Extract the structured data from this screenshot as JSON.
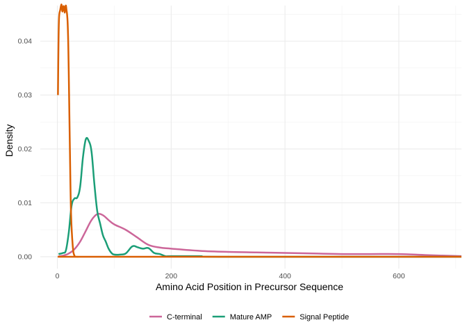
{
  "chart_data": {
    "type": "line",
    "title": "",
    "xlabel": "Amino Acid Position in Precursor Sequence",
    "ylabel": "Density",
    "xlim": [
      -30,
      710
    ],
    "ylim": [
      -0.0022,
      0.0466
    ],
    "x_ticks": [
      0,
      200,
      400,
      600
    ],
    "x_tick_labels": [
      "0",
      "200",
      "400",
      "600"
    ],
    "y_ticks": [
      0,
      0.01,
      0.02,
      0.03,
      0.04
    ],
    "y_tick_labels": [
      "0.00",
      "0.01",
      "0.02",
      "0.03",
      "0.04"
    ],
    "grid": true,
    "legend_position": "bottom",
    "series": [
      {
        "name": "C-terminal",
        "color": "#cc6699",
        "x": [
          2,
          10,
          20,
          30,
          40,
          50,
          60,
          70,
          80,
          90,
          100,
          120,
          140,
          160,
          180,
          200,
          250,
          300,
          350,
          400,
          450,
          500,
          550,
          600,
          650,
          710
        ],
        "y": [
          0.0001,
          0.0002,
          0.0006,
          0.0014,
          0.0028,
          0.0048,
          0.0068,
          0.0079,
          0.0077,
          0.0068,
          0.006,
          0.005,
          0.0036,
          0.0022,
          0.0017,
          0.0015,
          0.0011,
          0.0009,
          0.0008,
          0.0007,
          0.0006,
          0.0005,
          0.0005,
          0.0005,
          0.0003,
          0.0001
        ]
      },
      {
        "name": "Mature AMP",
        "color": "#1b9e77",
        "x": [
          2,
          10,
          15,
          20,
          25,
          30,
          35,
          40,
          45,
          50,
          55,
          60,
          65,
          70,
          75,
          80,
          85,
          90,
          95,
          100,
          110,
          120,
          130,
          135,
          140,
          150,
          160,
          170,
          180,
          190,
          200,
          250,
          300,
          710
        ],
        "y": [
          0.0005,
          0.0007,
          0.0012,
          0.0045,
          0.0095,
          0.0108,
          0.011,
          0.013,
          0.0185,
          0.0218,
          0.0215,
          0.0195,
          0.0135,
          0.0085,
          0.0062,
          0.004,
          0.0028,
          0.0015,
          0.0007,
          0.0004,
          0.0004,
          0.0006,
          0.0018,
          0.002,
          0.0018,
          0.0015,
          0.0016,
          0.0007,
          0.0005,
          0.0001,
          0.0001,
          0.0001,
          0.0,
          0.0
        ]
      },
      {
        "name": "Signal Peptide",
        "color": "#d95f02",
        "x": [
          1,
          2,
          3,
          5,
          7,
          8,
          9,
          10,
          11,
          12,
          13,
          14,
          15,
          16,
          17,
          18,
          19,
          20,
          22,
          24,
          27,
          30,
          35,
          40,
          60,
          710
        ],
        "y": [
          0.03,
          0.04,
          0.0445,
          0.0458,
          0.0468,
          0.046,
          0.0455,
          0.0462,
          0.0465,
          0.046,
          0.0453,
          0.0462,
          0.0466,
          0.0458,
          0.045,
          0.0435,
          0.04,
          0.034,
          0.02,
          0.008,
          0.002,
          0.0002,
          0.0,
          0.0,
          0.0,
          0.0
        ]
      }
    ]
  }
}
